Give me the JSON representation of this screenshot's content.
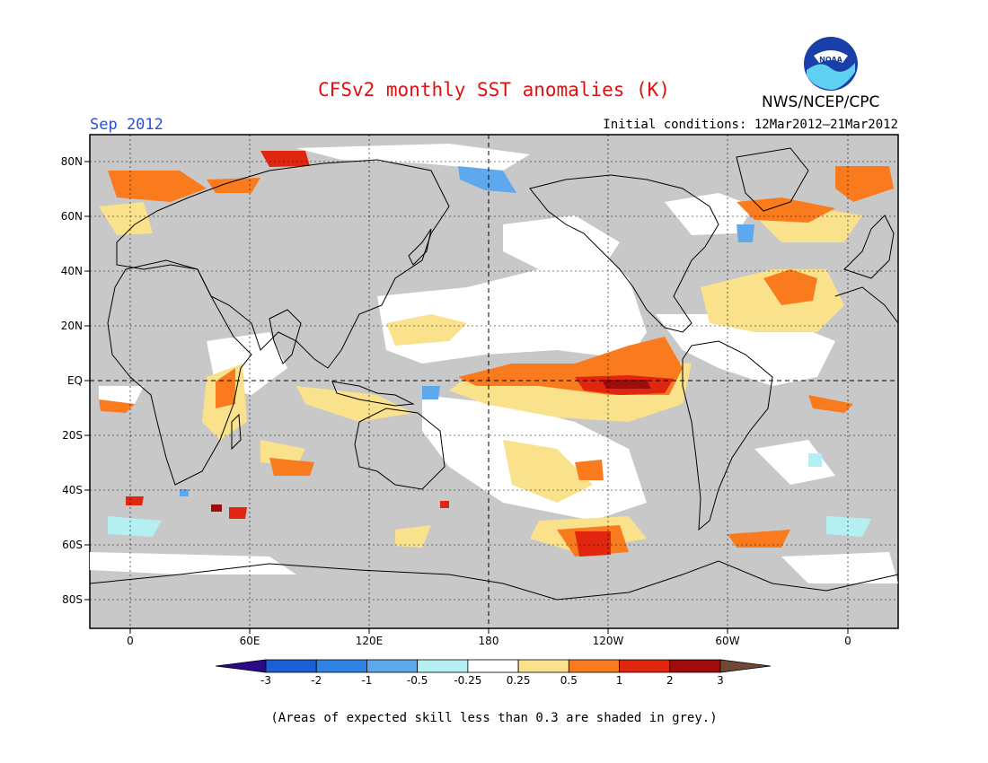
{
  "header": {
    "title": "CFSv2 monthly SST anomalies (K)",
    "agency": "NWS/NCEP/CPC",
    "month": "Sep 2012",
    "initial_conditions": "Initial conditions: 12Mar2012–21Mar2012"
  },
  "logo": {
    "text": "NOAA",
    "icon": "noaa-logo-icon"
  },
  "axes": {
    "lat_labels": [
      "80N",
      "60N",
      "40N",
      "20N",
      "EQ",
      "20S",
      "40S",
      "60S",
      "80S"
    ],
    "lon_labels": [
      "0",
      "60E",
      "120E",
      "180",
      "120W",
      "60W",
      "0"
    ]
  },
  "colorbar": {
    "ticks": [
      "-3",
      "-2",
      "-1",
      "-0.5",
      "-0.25",
      "0.25",
      "0.5",
      "1",
      "2",
      "3"
    ],
    "colors": [
      "#2b0a8a",
      "#1c5fd4",
      "#2f83e6",
      "#5ea8ee",
      "#b4f0f2",
      "#ffffff",
      "#fae18b",
      "#f97b1d",
      "#e0260f",
      "#a00b0b",
      "#6e4a36"
    ]
  },
  "colors": {
    "ocean_grey": "#c8c8c8",
    "land": "#c8c8c8",
    "title": "#e01010",
    "month": "#2a4fd6"
  },
  "note": "(Areas of expected skill less than 0.3 are shaded in grey.)"
}
